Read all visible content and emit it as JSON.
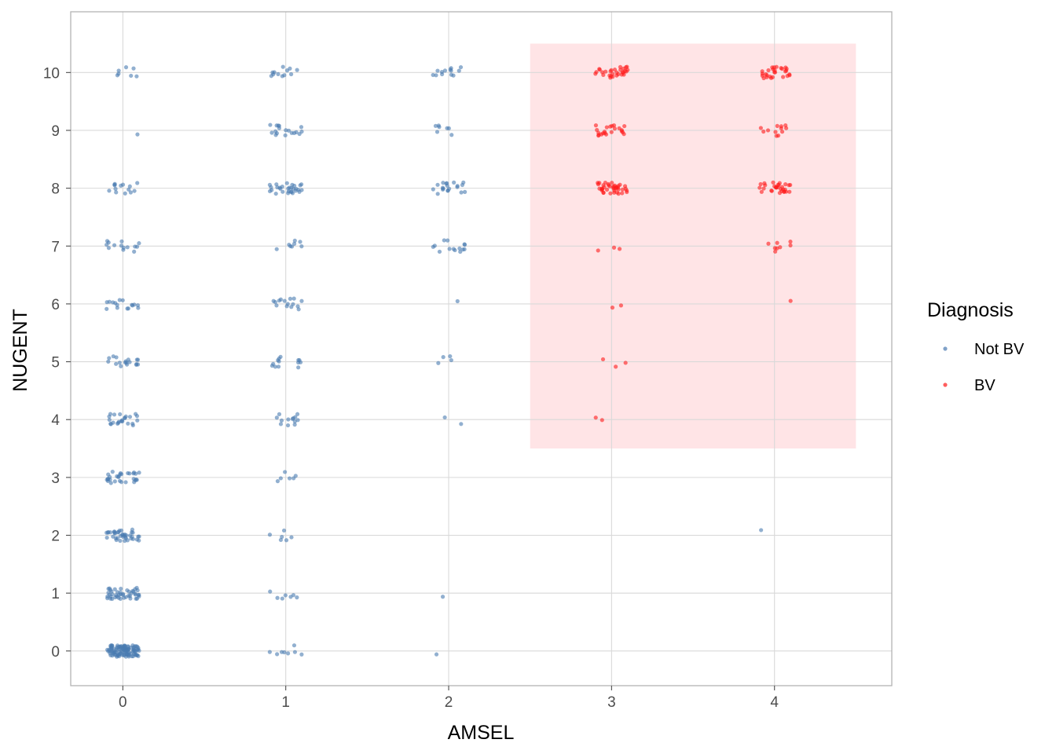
{
  "chart_data": {
    "type": "scatter",
    "title": "",
    "xlabel": "AMSEL",
    "ylabel": "NUGENT",
    "xlim": [
      -0.32,
      4.72
    ],
    "ylim": [
      -0.6,
      11.05
    ],
    "x_ticks": [
      "0",
      "1",
      "2",
      "3",
      "4"
    ],
    "y_ticks": [
      "0",
      "1",
      "2",
      "3",
      "4",
      "5",
      "6",
      "7",
      "8",
      "9",
      "10"
    ],
    "grid": true,
    "jitter": 0.1,
    "highlight_region": {
      "x": [
        2.5,
        4.5
      ],
      "y": [
        3.5,
        10.5
      ],
      "color": "#ffe1e3"
    },
    "legend": {
      "title": "Diagnosis",
      "position": "right"
    },
    "series": [
      {
        "name": "Not BV",
        "color": "#4a7bb0",
        "counts": [
          {
            "amsel": 0,
            "nugent": 0,
            "n": 110
          },
          {
            "amsel": 0,
            "nugent": 1,
            "n": 45
          },
          {
            "amsel": 0,
            "nugent": 2,
            "n": 40
          },
          {
            "amsel": 0,
            "nugent": 3,
            "n": 30
          },
          {
            "amsel": 0,
            "nugent": 4,
            "n": 24
          },
          {
            "amsel": 0,
            "nugent": 5,
            "n": 18
          },
          {
            "amsel": 0,
            "nugent": 6,
            "n": 16
          },
          {
            "amsel": 0,
            "nugent": 7,
            "n": 14
          },
          {
            "amsel": 0,
            "nugent": 8,
            "n": 14
          },
          {
            "amsel": 0,
            "nugent": 9,
            "n": 1
          },
          {
            "amsel": 0,
            "nugent": 10,
            "n": 7
          },
          {
            "amsel": 1,
            "nugent": 0,
            "n": 8
          },
          {
            "amsel": 1,
            "nugent": 1,
            "n": 7
          },
          {
            "amsel": 1,
            "nugent": 2,
            "n": 6
          },
          {
            "amsel": 1,
            "nugent": 3,
            "n": 6
          },
          {
            "amsel": 1,
            "nugent": 4,
            "n": 13
          },
          {
            "amsel": 1,
            "nugent": 5,
            "n": 13
          },
          {
            "amsel": 1,
            "nugent": 6,
            "n": 15
          },
          {
            "amsel": 1,
            "nugent": 7,
            "n": 8
          },
          {
            "amsel": 1,
            "nugent": 8,
            "n": 30
          },
          {
            "amsel": 1,
            "nugent": 9,
            "n": 18
          },
          {
            "amsel": 1,
            "nugent": 10,
            "n": 12
          },
          {
            "amsel": 2,
            "nugent": 0,
            "n": 1
          },
          {
            "amsel": 2,
            "nugent": 1,
            "n": 1
          },
          {
            "amsel": 2,
            "nugent": 4,
            "n": 2
          },
          {
            "amsel": 2,
            "nugent": 5,
            "n": 4
          },
          {
            "amsel": 2,
            "nugent": 6,
            "n": 1
          },
          {
            "amsel": 2,
            "nugent": 7,
            "n": 14
          },
          {
            "amsel": 2,
            "nugent": 8,
            "n": 20
          },
          {
            "amsel": 2,
            "nugent": 9,
            "n": 7
          },
          {
            "amsel": 2,
            "nugent": 10,
            "n": 13
          },
          {
            "amsel": 4,
            "nugent": 2,
            "n": 1
          }
        ]
      },
      {
        "name": "BV",
        "color": "#ff1a1a",
        "counts": [
          {
            "amsel": 3,
            "nugent": 4,
            "n": 2
          },
          {
            "amsel": 3,
            "nugent": 5,
            "n": 3
          },
          {
            "amsel": 3,
            "nugent": 6,
            "n": 2
          },
          {
            "amsel": 3,
            "nugent": 7,
            "n": 3
          },
          {
            "amsel": 3,
            "nugent": 8,
            "n": 40
          },
          {
            "amsel": 3,
            "nugent": 9,
            "n": 22
          },
          {
            "amsel": 3,
            "nugent": 10,
            "n": 30
          },
          {
            "amsel": 4,
            "nugent": 6,
            "n": 1
          },
          {
            "amsel": 4,
            "nugent": 7,
            "n": 8
          },
          {
            "amsel": 4,
            "nugent": 8,
            "n": 30
          },
          {
            "amsel": 4,
            "nugent": 9,
            "n": 12
          },
          {
            "amsel": 4,
            "nugent": 10,
            "n": 28
          }
        ]
      }
    ]
  }
}
